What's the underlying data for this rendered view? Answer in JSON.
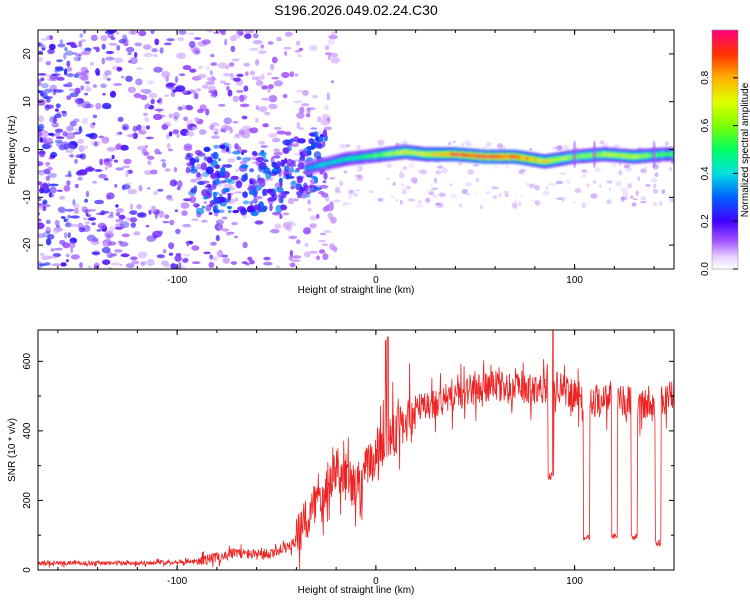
{
  "chart_data": [
    {
      "type": "heatmap",
      "title": "S196.2026.049.02.24.C30",
      "xlabel": "Height of straight line (km)",
      "ylabel": "Frequency (Hz)",
      "xlim": [
        -170,
        150
      ],
      "ylim": [
        -25,
        25
      ],
      "xticks": [
        -100,
        0,
        100
      ],
      "yticks": [
        -20,
        -10,
        0,
        10,
        20
      ],
      "xtick_labels": [
        "-100",
        "0",
        "100"
      ],
      "ytick_labels": [
        "-20",
        "-10",
        "0",
        "10",
        "20"
      ],
      "colorbar": {
        "label": "Normalized spectral amplitude",
        "range": [
          0,
          1
        ],
        "ticks": [
          0.0,
          0.2,
          0.4,
          0.6,
          0.8
        ],
        "tick_labels": [
          "0.0",
          "0.2",
          "0.4",
          "0.6",
          "0.8"
        ]
      },
      "ridge": {
        "description_points_x": [
          -90,
          -75,
          -60,
          -45,
          -35,
          -25,
          -15,
          -5,
          5,
          15,
          25,
          40,
          55,
          70,
          85,
          100,
          115,
          130,
          145
        ],
        "frequency_hz": [
          -7,
          -6,
          -7,
          -5,
          -4,
          -3,
          -2,
          -1.5,
          -1,
          -0.5,
          -1,
          -1,
          -1.5,
          -1.5,
          -2.5,
          -1.5,
          -1,
          -1.5,
          -1
        ],
        "amplitude": [
          0.2,
          0.25,
          0.3,
          0.3,
          0.35,
          0.4,
          0.45,
          0.5,
          0.6,
          0.7,
          0.7,
          0.9,
          0.95,
          0.9,
          0.75,
          0.6,
          0.65,
          0.7,
          0.55
        ]
      }
    },
    {
      "type": "line",
      "xlabel": "Height of straight line (km)",
      "ylabel": "SNR (10 * v/v)",
      "xlim": [
        -170,
        150
      ],
      "ylim": [
        0,
        690
      ],
      "xticks": [
        -100,
        0,
        100
      ],
      "yticks": [
        0,
        200,
        400,
        600
      ],
      "xtick_labels": [
        "-100",
        "0",
        "100"
      ],
      "ytick_labels": [
        "0",
        "200",
        "400",
        "600"
      ],
      "series": [
        {
          "name": "SNR",
          "color": "#ee2222",
          "envelope_x": [
            -170,
            -120,
            -90,
            -70,
            -55,
            -40,
            -30,
            -20,
            -10,
            0,
            10,
            20,
            30,
            40,
            50,
            60,
            70,
            80,
            90,
            100,
            110,
            120,
            130,
            140,
            150
          ],
          "envelope_y": [
            20,
            20,
            25,
            50,
            40,
            80,
            200,
            300,
            230,
            340,
            400,
            460,
            480,
            500,
            520,
            530,
            520,
            520,
            530,
            500,
            490,
            500,
            480,
            470,
            510
          ],
          "dips": [
            {
              "x": 88,
              "y": 260
            },
            {
              "x": 106,
              "y": 85
            },
            {
              "x": 120,
              "y": 90
            },
            {
              "x": 130,
              "y": 85
            },
            {
              "x": 142,
              "y": 70
            }
          ],
          "spikes": [
            {
              "x": 6,
              "y": 670
            },
            {
              "x": 89,
              "y": 690
            },
            {
              "x": 5,
              "y": 660
            }
          ]
        }
      ]
    }
  ]
}
